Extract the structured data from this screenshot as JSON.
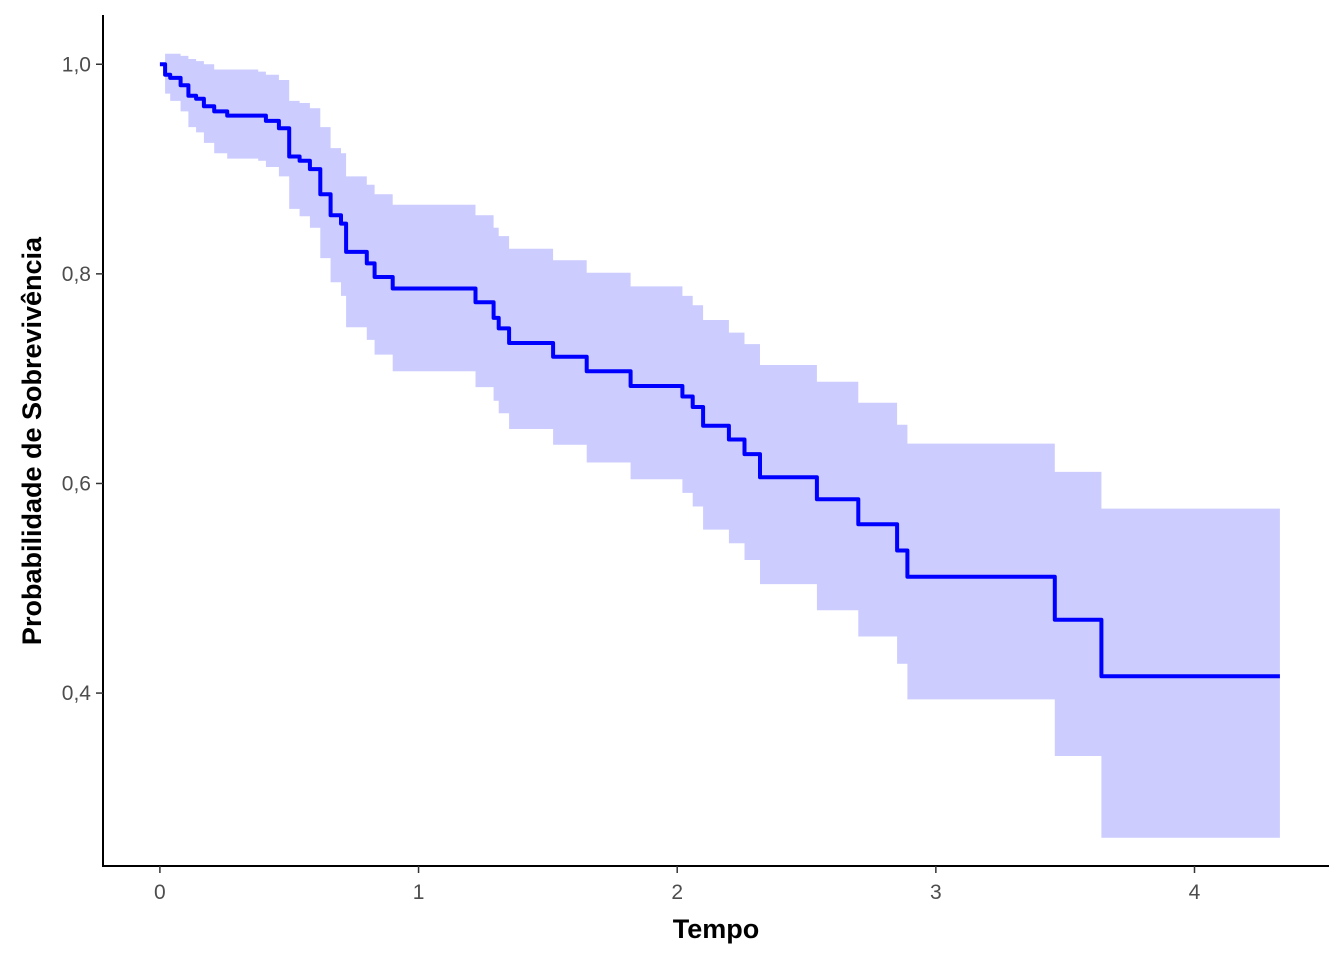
{
  "chart_data": {
    "type": "line",
    "subtype": "kaplan-meier survival curve (step) with confidence band",
    "title": "",
    "xlabel": "Tempo",
    "ylabel": "Probabilidade de Sobrevivência",
    "xlim": [
      -0.22,
      4.52
    ],
    "ylim": [
      0.235,
      1.047
    ],
    "x_ticks": [
      0,
      1,
      2,
      3,
      4
    ],
    "x_tick_labels": [
      "0",
      "1",
      "2",
      "3",
      "4"
    ],
    "y_ticks": [
      0.4,
      0.6,
      0.8,
      1.0
    ],
    "y_tick_labels": [
      "0,4",
      "0,6",
      "0,8",
      "1,0"
    ],
    "grid": false,
    "legend": "none",
    "colors": {
      "line": "#0000ff",
      "band": "#ccccff",
      "axis": "#000000",
      "tick_text": "#4d4d4d"
    },
    "series": [
      {
        "x": [
          0.0,
          0.02,
          0.04,
          0.08,
          0.11,
          0.14,
          0.17,
          0.21,
          0.26,
          0.31,
          0.38,
          0.41,
          0.46,
          0.5,
          0.54,
          0.58,
          0.62,
          0.66,
          0.7,
          0.72,
          0.76,
          0.8,
          0.83,
          0.86,
          0.9,
          0.95,
          1.1,
          1.22,
          1.27,
          1.29,
          1.31,
          1.35,
          1.43,
          1.52,
          1.56,
          1.65,
          1.75,
          1.82,
          1.96,
          2.02,
          2.06,
          2.1,
          2.2,
          2.26,
          2.32,
          2.48,
          2.54,
          2.66,
          2.7,
          2.76,
          2.85,
          2.89,
          3.43,
          3.46,
          3.6,
          3.64,
          4.33
        ],
        "y": [
          1.0,
          0.99,
          0.987,
          0.98,
          0.97,
          0.967,
          0.96,
          0.955,
          0.951,
          0.951,
          0.951,
          0.946,
          0.939,
          0.912,
          0.908,
          0.9,
          0.876,
          0.856,
          0.848,
          0.821,
          0.821,
          0.81,
          0.797,
          0.797,
          0.786,
          0.786,
          0.786,
          0.773,
          0.773,
          0.758,
          0.748,
          0.734,
          0.734,
          0.721,
          0.721,
          0.707,
          0.707,
          0.693,
          0.693,
          0.683,
          0.673,
          0.655,
          0.642,
          0.628,
          0.606,
          0.606,
          0.585,
          0.585,
          0.561,
          0.561,
          0.536,
          0.511,
          0.511,
          0.47,
          0.47,
          0.416,
          0.416
        ],
        "upper": [
          1.0,
          1.01,
          1.01,
          1.008,
          1.005,
          1.003,
          1.0,
          0.995,
          0.995,
          0.995,
          0.993,
          0.99,
          0.985,
          0.965,
          0.963,
          0.958,
          0.94,
          0.92,
          0.915,
          0.893,
          0.893,
          0.885,
          0.876,
          0.876,
          0.866,
          0.866,
          0.866,
          0.856,
          0.856,
          0.844,
          0.836,
          0.824,
          0.824,
          0.813,
          0.813,
          0.801,
          0.801,
          0.788,
          0.788,
          0.779,
          0.77,
          0.756,
          0.744,
          0.733,
          0.713,
          0.713,
          0.697,
          0.697,
          0.677,
          0.677,
          0.656,
          0.638,
          0.638,
          0.611,
          0.611,
          0.576,
          0.576
        ],
        "lower": [
          1.0,
          0.972,
          0.965,
          0.955,
          0.94,
          0.935,
          0.925,
          0.915,
          0.91,
          0.91,
          0.908,
          0.902,
          0.893,
          0.862,
          0.855,
          0.844,
          0.815,
          0.792,
          0.779,
          0.749,
          0.749,
          0.737,
          0.723,
          0.723,
          0.707,
          0.707,
          0.707,
          0.692,
          0.692,
          0.679,
          0.667,
          0.652,
          0.652,
          0.637,
          0.637,
          0.62,
          0.62,
          0.604,
          0.604,
          0.591,
          0.578,
          0.556,
          0.543,
          0.527,
          0.504,
          0.504,
          0.479,
          0.479,
          0.454,
          0.454,
          0.428,
          0.394,
          0.394,
          0.34,
          0.34,
          0.262,
          0.262
        ]
      }
    ]
  }
}
